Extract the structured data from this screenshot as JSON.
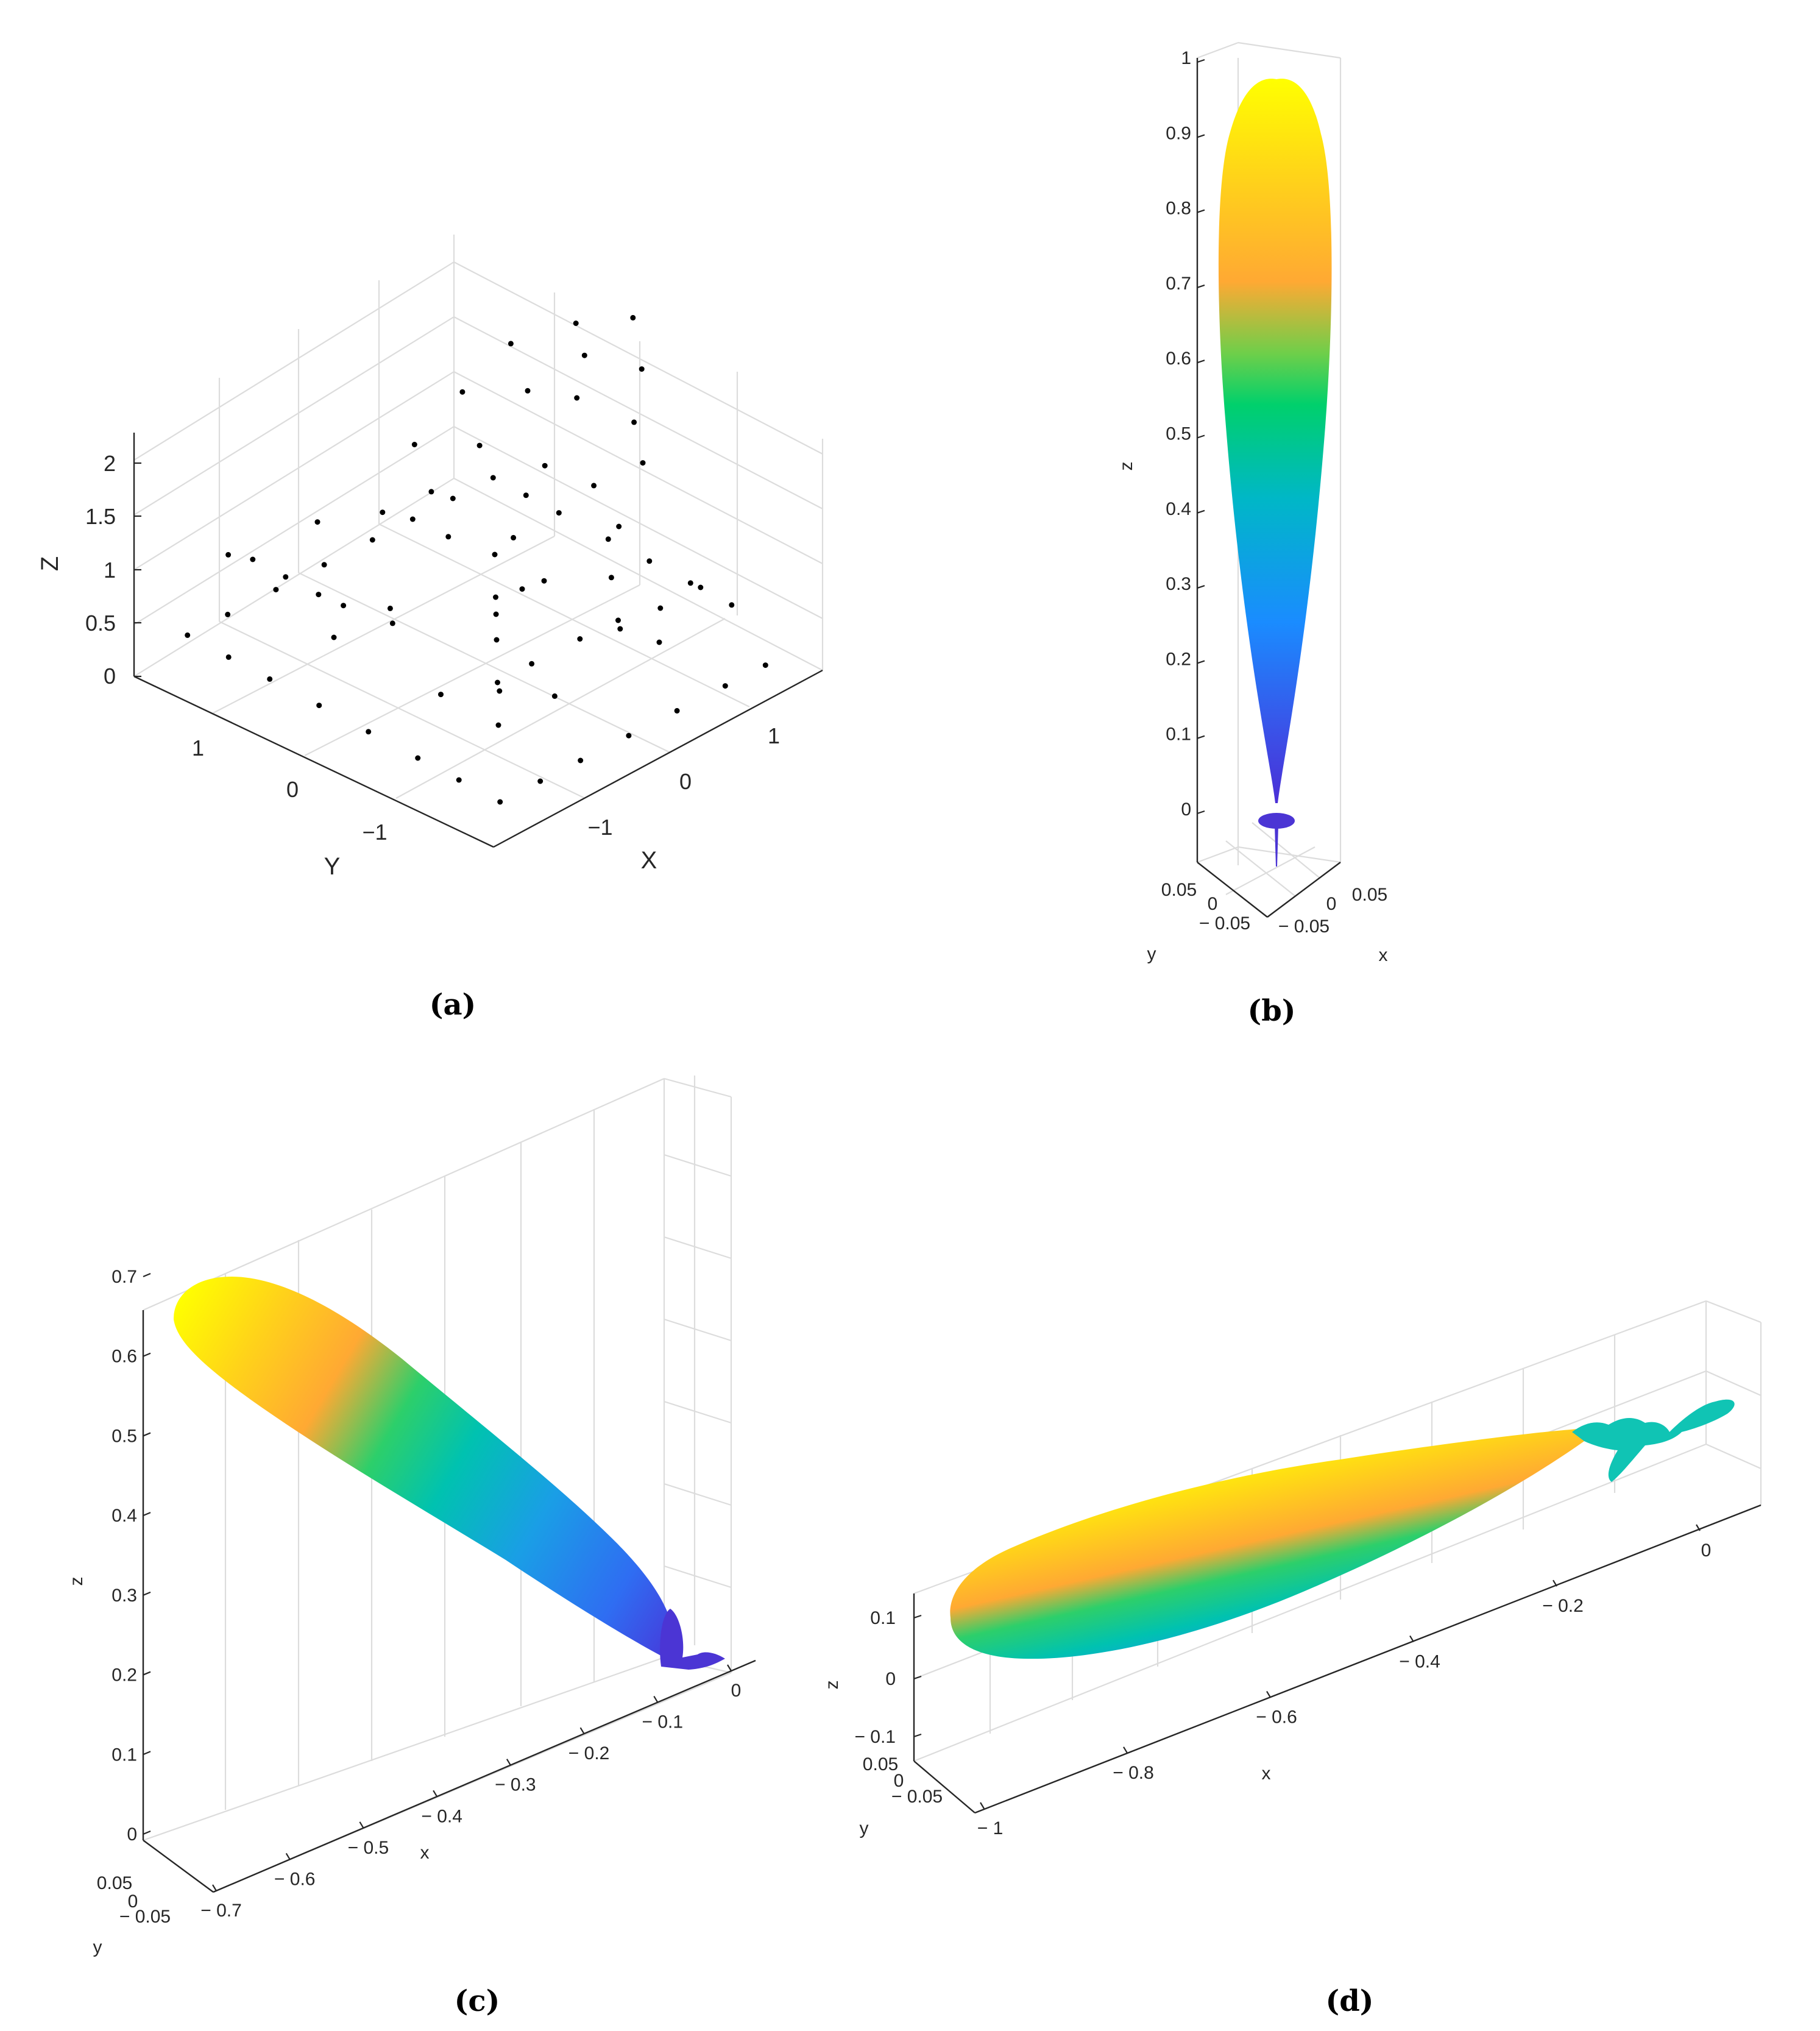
{
  "chart_data": [
    {
      "panel": "(a)",
      "type": "scatter",
      "caption": "(a)",
      "xlabel": "X",
      "ylabel": "Y",
      "zlabel": "Z",
      "xlim": [
        -2,
        2
      ],
      "ylim": [
        -2,
        2
      ],
      "zlim": [
        0,
        2.2
      ],
      "xticks": [
        "−1",
        "0",
        "1"
      ],
      "yticks": [
        "−1",
        "0",
        "1"
      ],
      "zticks": [
        "0",
        "0.5",
        "1",
        "1.5",
        "2"
      ],
      "grid": true,
      "marker_color": "#000000",
      "points": [
        [
          -1.9,
          -1.9,
          0
        ],
        [
          -1.5,
          -1.9,
          0
        ],
        [
          -1.1,
          -1.9,
          0
        ],
        [
          -0.5,
          -1.9,
          0
        ],
        [
          0,
          -1.9,
          0
        ],
        [
          0.5,
          -1.9,
          0
        ],
        [
          1.0,
          -1.9,
          0
        ],
        [
          -1.9,
          -1.4,
          0
        ],
        [
          -1.9,
          -0.9,
          0
        ],
        [
          -1.9,
          -0.4,
          0
        ],
        [
          -1.9,
          0.2,
          0
        ],
        [
          -1.9,
          0.8,
          0
        ],
        [
          -1.9,
          1.4,
          0
        ],
        [
          -1.9,
          1.9,
          0
        ],
        [
          -1.4,
          1.9,
          0
        ],
        [
          -0.9,
          1.9,
          0
        ],
        [
          -0.3,
          1.9,
          0
        ],
        [
          0.3,
          1.9,
          0
        ],
        [
          0.9,
          1.9,
          0
        ],
        [
          1.4,
          1.9,
          0
        ],
        [
          1.9,
          1.9,
          0
        ],
        [
          1.9,
          1.4,
          0
        ],
        [
          1.9,
          0.9,
          0
        ],
        [
          1.9,
          0.3,
          0
        ],
        [
          1.9,
          -0.3,
          0
        ],
        [
          1.9,
          -0.9,
          0
        ],
        [
          1.9,
          -1.4,
          0
        ],
        [
          -1.0,
          -1.0,
          0
        ],
        [
          -0.5,
          -0.5,
          0
        ],
        [
          0,
          0,
          0
        ],
        [
          0.5,
          0.5,
          0
        ],
        [
          1.0,
          1.0,
          0
        ],
        [
          -1.0,
          1.0,
          0
        ],
        [
          1.0,
          -1.0,
          0
        ],
        [
          -0.4,
          -1.0,
          0
        ],
        [
          0.5,
          -1.0,
          0
        ],
        [
          -1.0,
          0.3,
          0
        ],
        [
          1.0,
          0.3,
          0
        ],
        [
          0.3,
          1.0,
          0
        ],
        [
          -0.3,
          -0.3,
          0
        ],
        [
          -1.6,
          1.7,
          0.8
        ],
        [
          -1.4,
          1.6,
          0.8
        ],
        [
          -1.0,
          1.6,
          0.8
        ],
        [
          -0.6,
          1.6,
          0.8
        ],
        [
          -0.2,
          1.7,
          0.9
        ],
        [
          0.3,
          1.6,
          0.9
        ],
        [
          1.6,
          1.6,
          0.8
        ],
        [
          1.6,
          1.2,
          0.9
        ],
        [
          1.6,
          0.6,
          0.9
        ],
        [
          1.6,
          0.1,
          0.8
        ],
        [
          1.6,
          -0.4,
          0.8
        ],
        [
          1.6,
          -0.9,
          0.8
        ],
        [
          -1.2,
          1.0,
          1.0
        ],
        [
          -0.8,
          0.6,
          1.1
        ],
        [
          -0.5,
          0.3,
          1.3
        ],
        [
          0.0,
          0.6,
          1.2
        ],
        [
          0.4,
          0.2,
          1.2
        ],
        [
          0.8,
          0.5,
          1.0
        ],
        [
          1.2,
          -0.2,
          1.0
        ],
        [
          0.9,
          -0.6,
          1.2
        ],
        [
          0.4,
          -0.8,
          1.3
        ],
        [
          0.0,
          -0.6,
          1.4
        ],
        [
          -0.5,
          -0.3,
          1.5
        ],
        [
          -0.9,
          0.1,
          1.5
        ],
        [
          -1.1,
          -0.7,
          1.6
        ],
        [
          -0.6,
          -1.0,
          1.7
        ],
        [
          -0.1,
          -1.1,
          1.8
        ],
        [
          0.4,
          -1.3,
          1.7
        ],
        [
          0.8,
          -1.0,
          1.6
        ],
        [
          -1.0,
          -1.2,
          1.9
        ],
        [
          -0.3,
          -1.4,
          2.0
        ],
        [
          0.2,
          -1.6,
          2.0
        ],
        [
          -0.6,
          -1.6,
          2.1
        ],
        [
          -0.2,
          -1.9,
          2.2
        ]
      ]
    },
    {
      "panel": "(b)",
      "type": "surface",
      "caption": "(b)",
      "xlabel": "x",
      "ylabel": "y",
      "zlabel": "z",
      "xlim": [
        -0.06,
        0.06
      ],
      "ylim": [
        -0.06,
        0.06
      ],
      "zlim": [
        -0.1,
        1
      ],
      "xticks": [
        "− 0.05",
        "0",
        "0.05"
      ],
      "yticks": [
        "− 0.05",
        "0",
        "0.05"
      ],
      "zticks": [
        "0",
        "0.1",
        "0.2",
        "0.3",
        "0.4",
        "0.5",
        "0.6",
        "0.7",
        "0.8",
        "0.9",
        "1"
      ],
      "grid": true,
      "description_values": {
        "lobe_peak_z": 0.97,
        "lobe_max_halfwidth": 0.04,
        "sidelobe_z": 0.0
      },
      "colormap": [
        "#4b2fd6",
        "#1a8cff",
        "#00b7c7",
        "#00d06c",
        "#5fd14f",
        "#ffa933",
        "#ffd21a",
        "#ffff00"
      ]
    },
    {
      "panel": "(c)",
      "type": "surface",
      "caption": "(c)",
      "xlabel": "x",
      "ylabel": "y",
      "zlabel": "z",
      "xlim": [
        -0.7,
        0.05
      ],
      "ylim": [
        -0.06,
        0.06
      ],
      "zlim": [
        0,
        0.7
      ],
      "xticks": [
        "− 0.7",
        "− 0.6",
        "− 0.5",
        "− 0.4",
        "− 0.3",
        "− 0.2",
        "− 0.1",
        "0"
      ],
      "yticks": [
        "− 0.05",
        "0",
        "0.05"
      ],
      "zticks": [
        "0",
        "0.1",
        "0.2",
        "0.3",
        "0.4",
        "0.5",
        "0.6",
        "0.7"
      ],
      "grid": true,
      "colormap": [
        "#4b2fd6",
        "#1a8cff",
        "#00b7c7",
        "#00d06c",
        "#ffa933",
        "#ffff00"
      ]
    },
    {
      "panel": "(d)",
      "type": "surface",
      "caption": "(d)",
      "xlabel": "x",
      "ylabel": "y",
      "zlabel": "z",
      "xlim": [
        -1,
        0.05
      ],
      "ylim": [
        -0.06,
        0.06
      ],
      "zlim": [
        -0.1,
        0.1
      ],
      "xticks": [
        "− 1",
        "− 0.8",
        "− 0.6",
        "− 0.4",
        "− 0.2",
        "0"
      ],
      "yticks": [
        "− 0.05",
        "0",
        "0.05"
      ],
      "zticks": [
        "− 0.1",
        "0",
        "0.1"
      ],
      "grid": true,
      "colormap": [
        "#4b2fd6",
        "#1a8cff",
        "#00b7c7",
        "#00d06c",
        "#ffa933",
        "#ffff00"
      ]
    }
  ]
}
